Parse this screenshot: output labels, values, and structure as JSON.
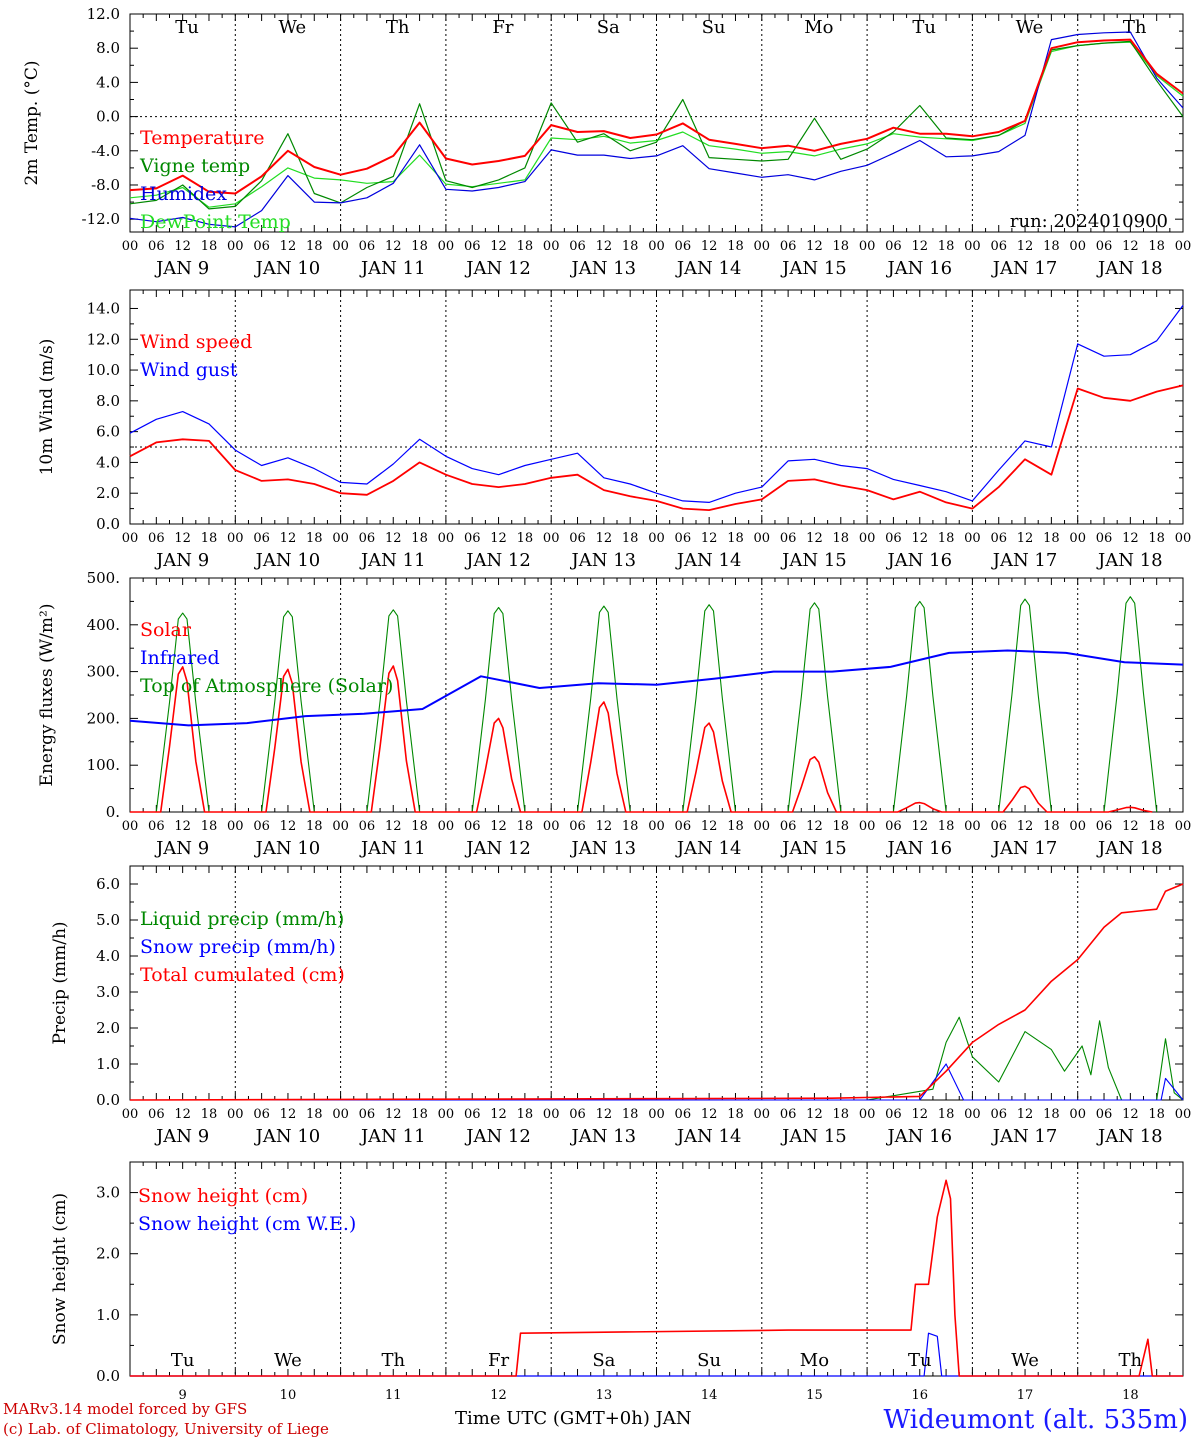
{
  "chart_data": [
    {
      "type": "line",
      "ylabel": "2m Temp. (°C)",
      "yticks": [
        "12.0",
        "8.0",
        "4.0",
        "0.0",
        "-4.0",
        "-8.0",
        "-12.0"
      ],
      "ylim": [
        -13.5,
        12.0
      ],
      "x_unit": "hours since JAN 9 00 UTC",
      "x": [
        0,
        6,
        12,
        18,
        24,
        30,
        36,
        42,
        48,
        54,
        60,
        66,
        72,
        78,
        84,
        90,
        96,
        102,
        108,
        114,
        120,
        126,
        132,
        138,
        144,
        150,
        156,
        162,
        168,
        174,
        180,
        186,
        192,
        198,
        204,
        210,
        216,
        222,
        228,
        234,
        240
      ],
      "series": [
        {
          "name": "Temperature",
          "color": "#ff0000",
          "values": [
            -8.6,
            -8.4,
            -6.9,
            -8.8,
            -9.0,
            -7.0,
            -4.0,
            -5.9,
            -6.8,
            -6.1,
            -4.6,
            -0.7,
            -4.9,
            -5.6,
            -5.2,
            -4.6,
            -1.0,
            -1.8,
            -1.7,
            -2.5,
            -2.1,
            -0.8,
            -2.7,
            -3.2,
            -3.7,
            -3.4,
            -4.0,
            -3.2,
            -2.6,
            -1.3,
            -2.0,
            -2.0,
            -2.3,
            -1.8,
            -0.5,
            8.0,
            8.7,
            8.9,
            9.0,
            5.0,
            2.7
          ]
        },
        {
          "name": "Vigne temp",
          "color": "#008800",
          "values": [
            -10.2,
            -9.8,
            -8.0,
            -10.8,
            -10.5,
            -7.5,
            -2.0,
            -9.0,
            -10.1,
            -8.3,
            -7.0,
            1.5,
            -7.5,
            -8.3,
            -7.4,
            -6.0,
            1.6,
            -3.0,
            -2.0,
            -4.0,
            -3.0,
            2.0,
            -4.8,
            -5.0,
            -5.2,
            -5.0,
            -0.2,
            -5.0,
            -3.8,
            -1.8,
            1.3,
            -2.5,
            -2.7,
            -2.2,
            -0.5,
            7.8,
            8.3,
            8.6,
            8.8,
            4.2,
            0.0
          ]
        },
        {
          "name": "Humidex",
          "color": "#0000dd",
          "values": [
            -11.9,
            -12.3,
            -11.8,
            -12.6,
            -12.9,
            -11.0,
            -6.9,
            -10.0,
            -10.1,
            -9.5,
            -7.8,
            -3.3,
            -8.5,
            -8.7,
            -8.3,
            -7.6,
            -3.9,
            -4.5,
            -4.5,
            -4.9,
            -4.6,
            -3.4,
            -6.1,
            -6.6,
            -7.1,
            -6.8,
            -7.4,
            -6.4,
            -5.7,
            -4.3,
            -2.8,
            -4.7,
            -4.6,
            -4.1,
            -2.2,
            9.0,
            9.6,
            9.8,
            9.9,
            4.5,
            1.0
          ]
        },
        {
          "name": "DewPoint Temp",
          "color": "#22dd22",
          "values": [
            -9.5,
            -9.2,
            -8.3,
            -10.6,
            -10.2,
            -8.2,
            -6.0,
            -7.2,
            -7.4,
            -7.8,
            -7.6,
            -4.5,
            -7.9,
            -8.2,
            -7.8,
            -7.4,
            -2.5,
            -2.7,
            -2.3,
            -3.1,
            -2.8,
            -1.8,
            -3.4,
            -3.8,
            -4.3,
            -4.1,
            -4.6,
            -3.8,
            -3.2,
            -2.0,
            -2.4,
            -2.6,
            -2.8,
            -2.2,
            -0.8,
            7.6,
            8.3,
            8.6,
            8.7,
            4.8,
            2.4
          ]
        }
      ],
      "annotation": "run: 2024010900"
    },
    {
      "type": "line",
      "ylabel": "10m Wind (m/s)",
      "yticks": [
        "14.0",
        "12.0",
        "10.0",
        "8.0",
        "6.0",
        "4.0",
        "2.0",
        "0.0"
      ],
      "ylim": [
        0,
        15.2
      ],
      "dashed_line": 5.0,
      "x": [
        0,
        6,
        12,
        18,
        24,
        30,
        36,
        42,
        48,
        54,
        60,
        66,
        72,
        78,
        84,
        90,
        96,
        102,
        108,
        114,
        120,
        126,
        132,
        138,
        144,
        150,
        156,
        162,
        168,
        174,
        180,
        186,
        192,
        198,
        204,
        210,
        216,
        222,
        228,
        234,
        240
      ],
      "series": [
        {
          "name": "Wind speed",
          "color": "#ff0000",
          "values": [
            4.4,
            5.3,
            5.5,
            5.4,
            3.5,
            2.8,
            2.9,
            2.6,
            2.0,
            1.9,
            2.8,
            4.0,
            3.2,
            2.6,
            2.4,
            2.6,
            3.0,
            3.2,
            2.2,
            1.8,
            1.5,
            1.0,
            0.9,
            1.3,
            1.6,
            2.8,
            2.9,
            2.5,
            2.2,
            1.6,
            2.1,
            1.4,
            1.0,
            2.4,
            4.2,
            3.2,
            8.8,
            8.2,
            8.0,
            8.6,
            9.0
          ]
        },
        {
          "name": "Wind gust",
          "color": "#0000ff",
          "values": [
            5.9,
            6.8,
            7.3,
            6.5,
            4.8,
            3.8,
            4.3,
            3.6,
            2.7,
            2.6,
            3.9,
            5.5,
            4.4,
            3.6,
            3.2,
            3.8,
            4.2,
            4.6,
            3.0,
            2.6,
            2.0,
            1.5,
            1.4,
            2.0,
            2.4,
            4.1,
            4.2,
            3.8,
            3.6,
            2.9,
            2.5,
            2.1,
            1.5,
            3.5,
            5.4,
            5.0,
            11.7,
            10.9,
            11.0,
            11.9,
            14.2
          ]
        }
      ],
      "legend": [
        "Wind speed",
        "Wind gust"
      ]
    },
    {
      "type": "line",
      "ylabel": "Energy fluxes (W/m²)",
      "yticks": [
        "500.",
        "400.",
        "300.",
        "200.",
        "100.",
        "0."
      ],
      "ylim": [
        0,
        500
      ],
      "series": [
        {
          "name": "Solar",
          "color": "#ff0000",
          "daily_peak": [
            310,
            305,
            312,
            200,
            235,
            190,
            118,
            20,
            55,
            10
          ]
        },
        {
          "name": "Infrared",
          "color": "#0000ff",
          "values": [
            195,
            185,
            190,
            205,
            210,
            220,
            290,
            265,
            275,
            272,
            285,
            300,
            300,
            310,
            340,
            345,
            340,
            320,
            315
          ]
        },
        {
          "name": "Top of Atmosphere (Solar)",
          "color": "#008800",
          "daily_peak": [
            425,
            430,
            432,
            437,
            440,
            443,
            447,
            450,
            455,
            460
          ]
        }
      ]
    },
    {
      "type": "line",
      "ylabel": "Precip (mm/h)",
      "yticks": [
        "6.0",
        "5.0",
        "4.0",
        "3.0",
        "2.0",
        "1.0",
        "0.0"
      ],
      "ylim": [
        0,
        6.5
      ],
      "series": [
        {
          "name": "Liquid precip (mm/h)",
          "color": "#008800"
        },
        {
          "name": "Snow precip (mm/h)",
          "color": "#0000ff"
        },
        {
          "name": "Total cumulated (cm)",
          "color": "#ff0000"
        }
      ]
    },
    {
      "type": "line",
      "ylabel": "Snow height (cm)",
      "yticks": [
        "3.0",
        "2.0",
        "1.0",
        "0.0"
      ],
      "ylim": [
        0,
        3.5
      ],
      "series": [
        {
          "name": "Snow height (cm)",
          "color": "#ff0000"
        },
        {
          "name": "Snow height (cm W.E.)",
          "color": "#0000ff"
        }
      ]
    }
  ],
  "axis": {
    "hour_ticks": [
      "00",
      "06",
      "12",
      "18"
    ],
    "final_tick": "00",
    "days": [
      {
        "abbr": "Tu",
        "date": "JAN  9",
        "num": "9",
        "weekend": false
      },
      {
        "abbr": "We",
        "date": "JAN 10",
        "num": "10",
        "weekend": false
      },
      {
        "abbr": "Th",
        "date": "JAN 11",
        "num": "11",
        "weekend": false
      },
      {
        "abbr": "Fr",
        "date": "JAN 12",
        "num": "12",
        "weekend": false
      },
      {
        "abbr": "Sa",
        "date": "JAN 13",
        "num": "13",
        "weekend": true
      },
      {
        "abbr": "Su",
        "date": "JAN 14",
        "num": "14",
        "weekend": true
      },
      {
        "abbr": "Mo",
        "date": "JAN 15",
        "num": "15",
        "weekend": false
      },
      {
        "abbr": "Tu",
        "date": "JAN 16",
        "num": "16",
        "weekend": false
      },
      {
        "abbr": "We",
        "date": "JAN 17",
        "num": "17",
        "weekend": false
      },
      {
        "abbr": "Th",
        "date": "JAN 18",
        "num": "18",
        "weekend": false
      }
    ],
    "xlabel": "Time UTC (GMT+0h) JAN"
  },
  "footer": {
    "line1": "MARv3.14 model forced by GFS",
    "line2": "(c) Lab. of Climatology, University of Liege",
    "station": "Wideumont (alt. 535m)"
  },
  "colors": {
    "red": "#ff0000",
    "green": "#008800",
    "blue": "#0000ff",
    "lightgreen": "#22dd22",
    "weekend": "#ff0000"
  }
}
